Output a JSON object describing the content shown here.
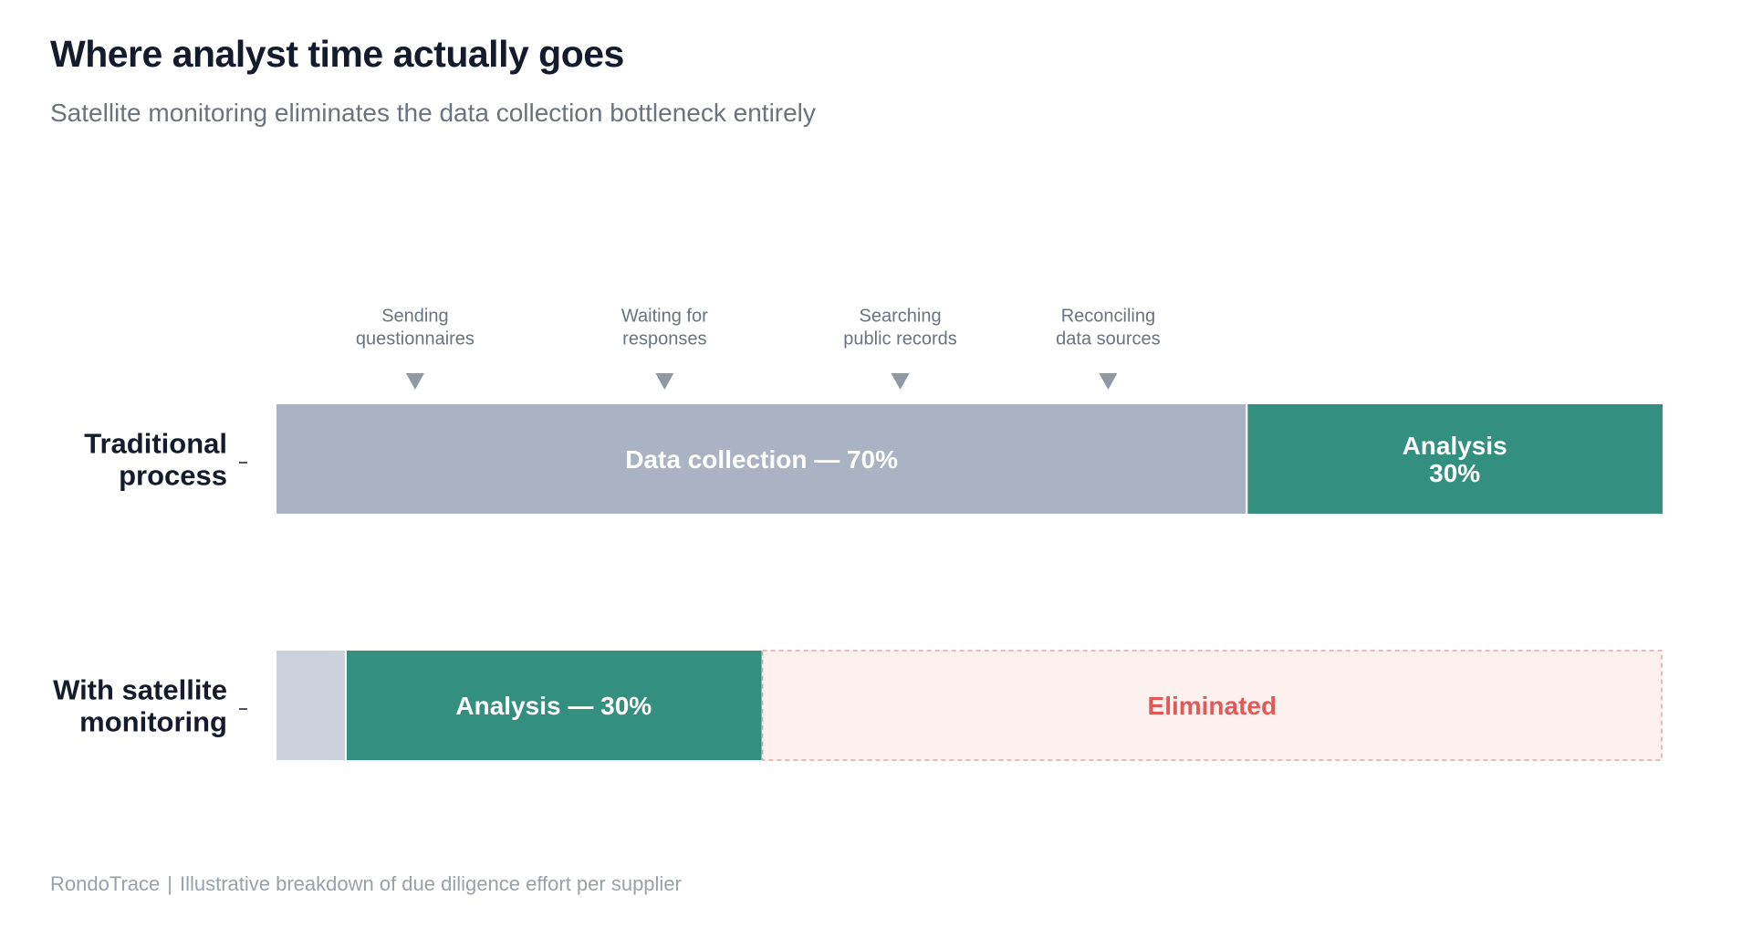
{
  "title": "Where analyst time actually goes",
  "subtitle": "Satellite monitoring eliminates the data collection bottleneck entirely",
  "footer": {
    "brand": "RondoTrace",
    "separator": "|",
    "note": "Illustrative breakdown of due diligence effort per supplier"
  },
  "colors": {
    "data_collection": "#a9b3c4",
    "analysis": "#338f7f",
    "residual": "#cbd2dc",
    "eliminated_fill": "#fdf1f0",
    "eliminated_border": "#e8a4a2",
    "eliminated_text": "#e05b58",
    "marker": "#8f98a3",
    "row_label": "#141b2d",
    "annotation_text": "#6b7380"
  },
  "chart_data": {
    "type": "bar",
    "orientation": "horizontal-stacked",
    "scale": [
      0,
      100
    ],
    "rows": [
      {
        "label_lines": [
          "Traditional",
          "process"
        ],
        "segments": [
          {
            "name": "Data collection",
            "value": 70,
            "color_key": "data_collection",
            "label_lines": [
              "Data collection — 70%"
            ]
          },
          {
            "name": "Analysis",
            "value": 30,
            "color_key": "analysis",
            "label_lines": [
              "Analysis",
              "30%"
            ]
          }
        ]
      },
      {
        "label_lines": [
          "With satellite",
          "monitoring"
        ],
        "segments": [
          {
            "name": "Residual",
            "value": 5,
            "color_key": "residual",
            "label_lines": []
          },
          {
            "name": "Analysis",
            "value": 30,
            "color_key": "analysis",
            "label_lines": [
              "Analysis — 30%"
            ]
          },
          {
            "name": "Eliminated",
            "value": 65,
            "color_key": "eliminated",
            "style": "dashed",
            "label_lines": [
              "Eliminated"
            ]
          }
        ]
      }
    ],
    "annotations": [
      {
        "at": 10,
        "lines": [
          "Sending",
          "questionnaires"
        ]
      },
      {
        "at": 28,
        "lines": [
          "Waiting for",
          "responses"
        ]
      },
      {
        "at": 45,
        "lines": [
          "Searching",
          "public records"
        ]
      },
      {
        "at": 60,
        "lines": [
          "Reconciling",
          "data sources"
        ]
      }
    ]
  }
}
